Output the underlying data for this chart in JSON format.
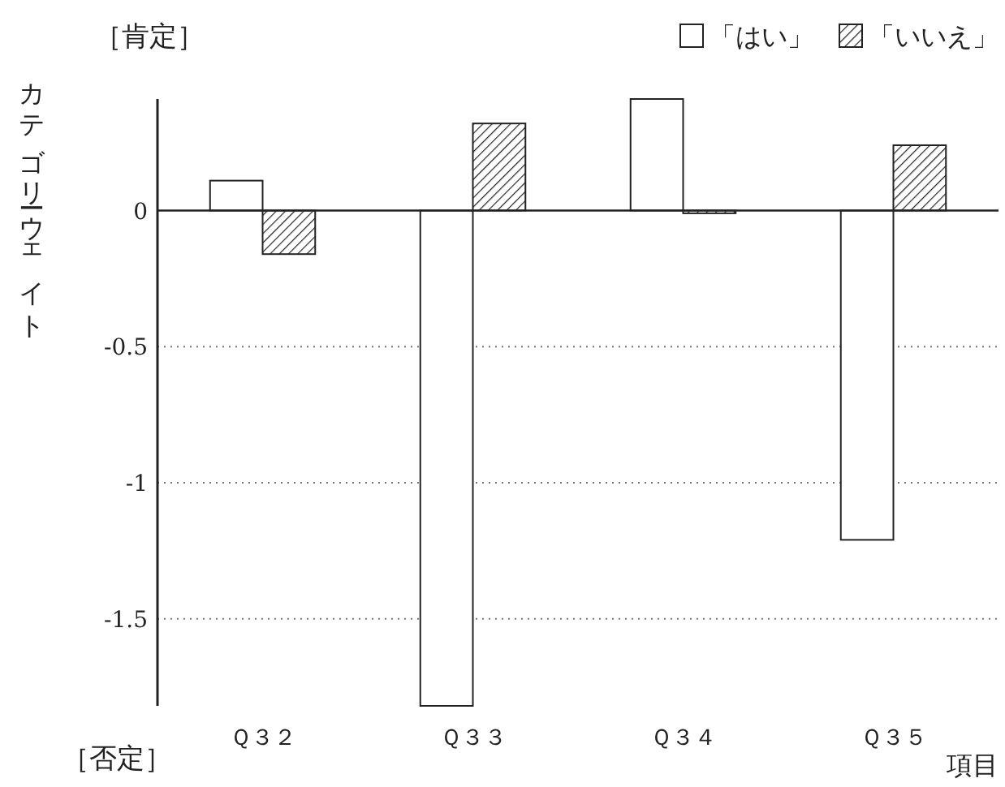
{
  "chart_data": {
    "type": "bar",
    "categories": [
      "Ｑ３２",
      "Ｑ３３",
      "Ｑ３４",
      "Ｑ３５"
    ],
    "series": [
      {
        "name": "「はい」",
        "color": "#ffffff",
        "values": [
          0.11,
          -1.82,
          0.41,
          -1.21
        ]
      },
      {
        "name": "「いいえ」",
        "color": "#222222",
        "values": [
          -0.16,
          0.32,
          -0.01,
          0.24
        ]
      }
    ],
    "ylabel": "カテゴリーウェイト",
    "xlabel": "項目",
    "annotations": [
      "［肯定］",
      "［否定］"
    ],
    "ylim": [
      -1.82,
      0.41
    ],
    "yticks": [
      0,
      -0.5,
      -1,
      -1.5
    ],
    "grid": "y",
    "legend": "top right"
  }
}
